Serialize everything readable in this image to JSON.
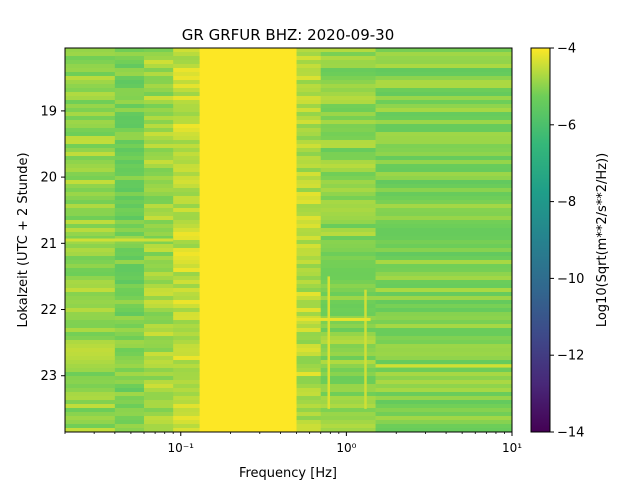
{
  "chart_data": {
    "type": "heatmap",
    "title": "GR GRFUR  BHZ: 2020-09-30",
    "xlabel": "Frequency [Hz]",
    "ylabel": "Lokalzeit (UTC + 2 Stunde)",
    "x_scale": "log",
    "xlim": [
      0.02,
      10
    ],
    "x_ticks": [
      {
        "value": 0.1,
        "label": "10⁻¹"
      },
      {
        "value": 1,
        "label": "10⁰"
      },
      {
        "value": 10,
        "label": "10¹"
      }
    ],
    "ylim": [
      18.05,
      23.85
    ],
    "y_inverted": true,
    "y_ticks": [
      19,
      20,
      21,
      22,
      23
    ],
    "y_tick_labels": [
      "19",
      "20",
      "21",
      "22",
      "23"
    ],
    "colorbar": {
      "label": "Log10(Sqrt(m**2/s**2/Hz))",
      "range": [
        -14,
        -4
      ],
      "ticks": [
        -4,
        -6,
        -8,
        -10,
        -12,
        -14
      ],
      "tick_labels": [
        "−4",
        "−6",
        "−8",
        "−10",
        "−12",
        "−14"
      ],
      "colormap": "viridis"
    },
    "frequency_bands": [
      {
        "from_hz": 0.02,
        "to_hz": 0.04,
        "value": -4.9
      },
      {
        "from_hz": 0.04,
        "to_hz": 0.06,
        "value": -5.2
      },
      {
        "from_hz": 0.06,
        "to_hz": 0.09,
        "value": -4.8
      },
      {
        "from_hz": 0.09,
        "to_hz": 0.13,
        "value": -4.5
      },
      {
        "from_hz": 0.13,
        "to_hz": 0.5,
        "value": -4.0
      },
      {
        "from_hz": 0.5,
        "to_hz": 0.7,
        "value": -4.6
      },
      {
        "from_hz": 0.7,
        "to_hz": 1.5,
        "value": -5.0
      },
      {
        "from_hz": 1.5,
        "to_hz": 10,
        "value": -5.1
      }
    ],
    "features": [
      {
        "kind": "vertical_line",
        "freq_hz": 0.78,
        "from_time": 21.5,
        "to_time": 23.5,
        "value": -4.3
      },
      {
        "kind": "vertical_line",
        "freq_hz": 1.3,
        "from_time": 21.7,
        "to_time": 23.5,
        "value": -4.4
      },
      {
        "kind": "horizontal_band",
        "time": 22.15,
        "from_hz": 0.5,
        "to_hz": 1.4,
        "value": -4.2
      },
      {
        "kind": "horizontal_band",
        "time": 22.85,
        "from_hz": 1.5,
        "to_hz": 10,
        "value": -4.4
      },
      {
        "kind": "horizontal_band",
        "time": 20.95,
        "from_hz": 0.02,
        "to_hz": 0.09,
        "value": -4.4
      }
    ]
  }
}
